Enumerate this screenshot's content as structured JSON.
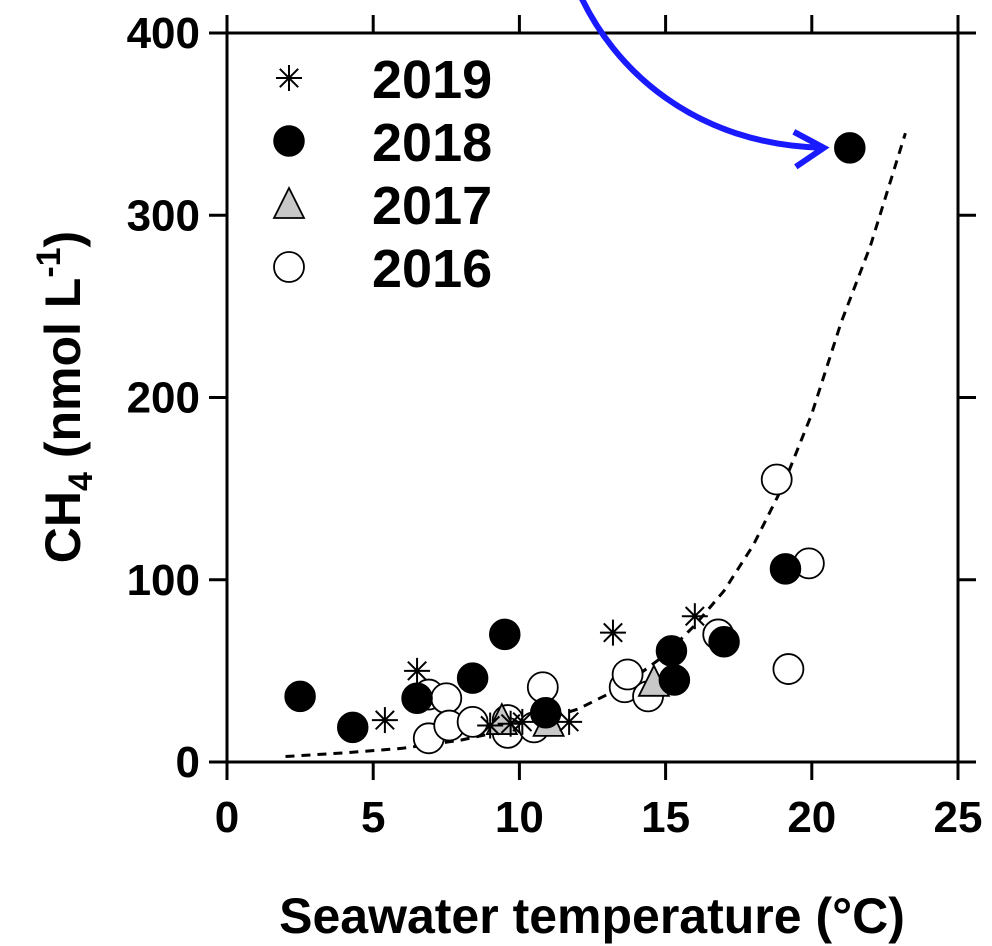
{
  "chart_data": {
    "type": "scatter",
    "title": "",
    "xlabel": "Seawater temperature (°C)",
    "ylabel": {
      "main": "CH",
      "sub": "4",
      "unit": " (nmol L",
      "sup": "-1",
      "close": ")"
    },
    "xlim": [
      0,
      25
    ],
    "ylim": [
      0,
      400
    ],
    "xticks": [
      0,
      5,
      10,
      15,
      20,
      25
    ],
    "yticks": [
      0,
      100,
      200,
      300,
      400
    ],
    "grid": false,
    "legend_position": "top-left",
    "series": [
      {
        "name": "2019",
        "marker": "asterisk",
        "points": [
          [
            5.4,
            23
          ],
          [
            6.5,
            50
          ],
          [
            9.7,
            21
          ],
          [
            10.1,
            22
          ],
          [
            11.7,
            22
          ],
          [
            13.2,
            71
          ],
          [
            16.0,
            80
          ],
          [
            9.0,
            20
          ]
        ]
      },
      {
        "name": "2018",
        "marker": "filled-circle",
        "points": [
          [
            2.5,
            36
          ],
          [
            4.3,
            19
          ],
          [
            6.5,
            35
          ],
          [
            8.4,
            46
          ],
          [
            9.5,
            70
          ],
          [
            10.9,
            27
          ],
          [
            15.2,
            61
          ],
          [
            15.3,
            45
          ],
          [
            17.0,
            66
          ],
          [
            19.1,
            106
          ],
          [
            21.3,
            337
          ]
        ]
      },
      {
        "name": "2017",
        "marker": "gray-triangle",
        "points": [
          [
            9.4,
            23
          ],
          [
            11.0,
            22
          ],
          [
            14.6,
            44
          ]
        ]
      },
      {
        "name": "2016",
        "marker": "open-circle",
        "points": [
          [
            6.9,
            13
          ],
          [
            6.9,
            37
          ],
          [
            7.5,
            35
          ],
          [
            7.6,
            20
          ],
          [
            8.4,
            22
          ],
          [
            9.6,
            23
          ],
          [
            9.6,
            16
          ],
          [
            10.5,
            19
          ],
          [
            10.8,
            41
          ],
          [
            13.6,
            41
          ],
          [
            13.7,
            48
          ],
          [
            14.4,
            36
          ],
          [
            16.8,
            70
          ],
          [
            18.8,
            155
          ],
          [
            19.2,
            51
          ],
          [
            19.9,
            109
          ]
        ]
      }
    ],
    "fit_curve": {
      "style": "dashed",
      "x_range": [
        2.0,
        23.2
      ],
      "points": [
        [
          2.0,
          3
        ],
        [
          4.0,
          5
        ],
        [
          6.0,
          7.5
        ],
        [
          8.0,
          12
        ],
        [
          10.0,
          19
        ],
        [
          12.0,
          29
        ],
        [
          13.0,
          37
        ],
        [
          14.0,
          47
        ],
        [
          15.0,
          59
        ],
        [
          16.0,
          75
        ],
        [
          17.0,
          94
        ],
        [
          18.0,
          119
        ],
        [
          19.0,
          151
        ],
        [
          20.0,
          191
        ],
        [
          21.0,
          241
        ],
        [
          22.0,
          283
        ],
        [
          23.2,
          345
        ]
      ]
    },
    "annotation": {
      "type": "curved-arrow",
      "color": "#1a1aff",
      "points_to": [
        21.3,
        337
      ]
    }
  }
}
